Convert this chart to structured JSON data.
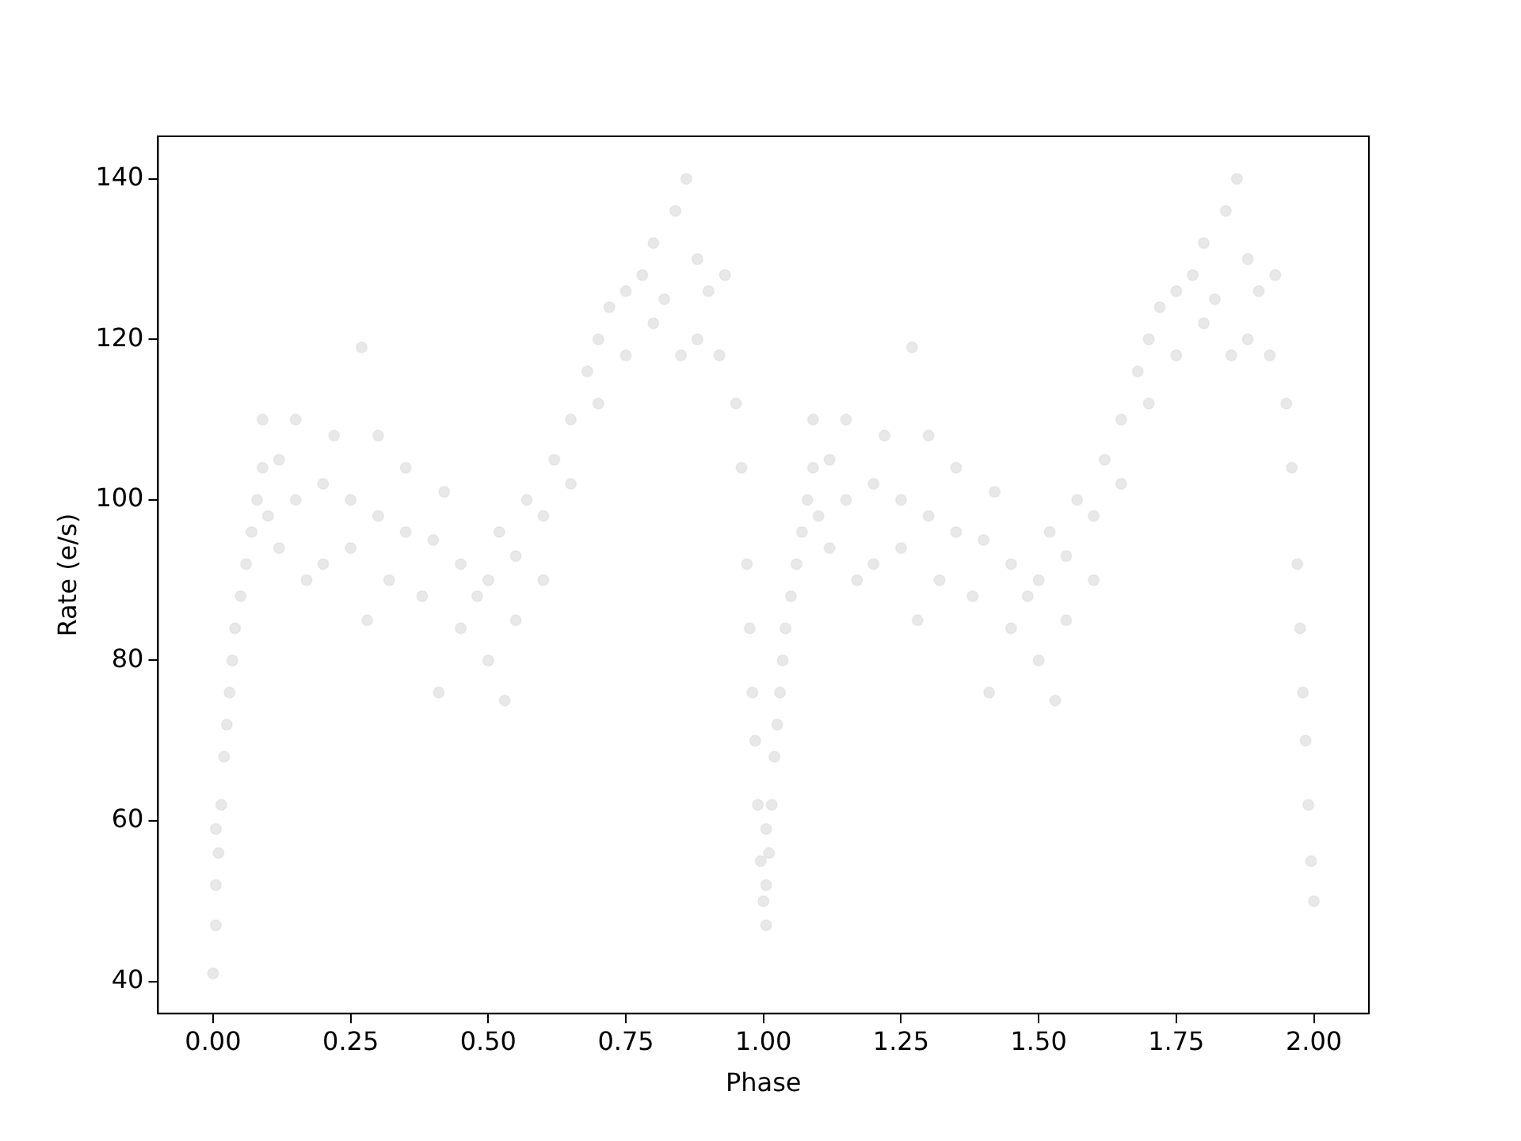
{
  "chart_data": {
    "type": "scatter",
    "xlabel": "Phase",
    "ylabel": "Rate (e/s)",
    "marker": "circle",
    "grid": false,
    "legend": false,
    "xlim": [
      -0.1,
      2.1
    ],
    "ylim": [
      36,
      145.3
    ],
    "xticks": [
      {
        "value": 0,
        "label": "0.00"
      },
      {
        "value": 0.25,
        "label": "0.25"
      },
      {
        "value": 0.5,
        "label": "0.50"
      },
      {
        "value": 0.75,
        "label": "0.75"
      },
      {
        "value": 1,
        "label": "1.00"
      },
      {
        "value": 1.25,
        "label": "1.25"
      },
      {
        "value": 1.5,
        "label": "1.50"
      },
      {
        "value": 1.75,
        "label": "1.75"
      },
      {
        "value": 2,
        "label": "2.00"
      }
    ],
    "yticks": [
      40,
      60,
      80,
      100,
      120,
      140
    ],
    "series": [
      {
        "color": "#000000",
        "x": [
          0.0,
          0.005,
          0.005,
          0.01,
          0.005,
          0.015,
          0.02,
          0.025,
          0.03,
          0.035,
          0.04,
          0.05,
          0.06,
          0.07,
          0.08,
          0.09,
          0.09,
          0.1,
          0.12,
          0.12,
          0.15,
          0.15,
          0.17,
          0.2,
          0.2,
          0.22,
          0.25,
          0.25,
          0.27,
          0.28,
          0.3,
          0.3,
          0.32,
          0.35,
          0.35,
          0.38,
          0.4,
          0.41,
          0.42,
          0.45,
          0.45,
          0.48,
          0.5,
          0.5,
          0.52,
          0.53,
          0.55,
          0.55,
          0.57,
          0.6,
          0.6,
          0.62,
          0.65,
          0.65,
          0.68,
          0.7,
          0.7,
          0.72,
          0.75,
          0.75,
          0.78,
          0.8,
          0.8,
          0.82,
          0.84,
          0.85,
          0.86,
          0.88,
          0.88,
          0.9,
          0.92,
          0.93,
          0.95,
          0.96,
          0.97,
          0.975,
          0.98,
          0.985,
          0.99,
          0.995,
          1.0,
          1.005,
          1.005,
          1.01,
          1.005,
          1.015,
          1.02,
          1.025,
          1.03,
          1.035,
          1.04,
          1.05,
          1.06,
          1.07,
          1.08,
          1.09,
          1.09,
          1.1,
          1.12,
          1.12,
          1.15,
          1.15,
          1.17,
          1.2,
          1.2,
          1.22,
          1.25,
          1.25,
          1.27,
          1.28,
          1.3,
          1.3,
          1.32,
          1.35,
          1.35,
          1.38,
          1.4,
          1.41,
          1.42,
          1.45,
          1.45,
          1.48,
          1.5,
          1.5,
          1.52,
          1.53,
          1.55,
          1.55,
          1.57,
          1.6,
          1.6,
          1.62,
          1.65,
          1.65,
          1.68,
          1.7,
          1.7,
          1.72,
          1.75,
          1.75,
          1.78,
          1.8,
          1.8,
          1.82,
          1.84,
          1.85,
          1.86,
          1.88,
          1.88,
          1.9,
          1.92,
          1.93,
          1.95,
          1.96,
          1.97,
          1.975,
          1.98,
          1.985,
          1.99,
          1.995,
          2.0
        ],
        "values": [
          41,
          47,
          52,
          56,
          59,
          62,
          68,
          72,
          76,
          80,
          84,
          88,
          92,
          96,
          100,
          104,
          110,
          98,
          94,
          105,
          100,
          110,
          90,
          102,
          92,
          108,
          100,
          94,
          119,
          85,
          98,
          108,
          90,
          96,
          104,
          88,
          95,
          76,
          101,
          92,
          84,
          88,
          90,
          80,
          96,
          75,
          93,
          85,
          100,
          98,
          90,
          105,
          110,
          102,
          116,
          120,
          112,
          124,
          118,
          126,
          128,
          122,
          132,
          125,
          136,
          118,
          140,
          130,
          120,
          126,
          118,
          128,
          112,
          104,
          92,
          84,
          76,
          70,
          62,
          55,
          50,
          47,
          52,
          56,
          59,
          62,
          68,
          72,
          76,
          80,
          84,
          88,
          92,
          96,
          100,
          104,
          110,
          98,
          94,
          105,
          100,
          110,
          90,
          102,
          92,
          108,
          100,
          94,
          119,
          85,
          98,
          108,
          90,
          96,
          104,
          88,
          95,
          76,
          101,
          92,
          84,
          88,
          90,
          80,
          96,
          75,
          93,
          85,
          100,
          98,
          90,
          105,
          110,
          102,
          116,
          120,
          112,
          124,
          118,
          126,
          128,
          122,
          132,
          125,
          136,
          118,
          140,
          130,
          120,
          126,
          118,
          128,
          112,
          104,
          92,
          84,
          76,
          70,
          62,
          55,
          50
        ]
      }
    ]
  }
}
